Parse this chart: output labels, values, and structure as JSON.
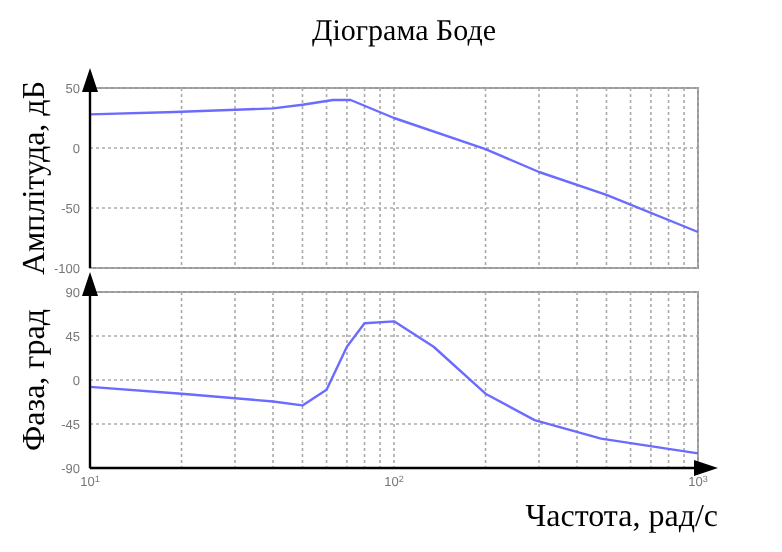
{
  "chart_data": [
    {
      "type": "line",
      "title": "Діограма Боде",
      "ylabel": "Амплітуда, дБ",
      "log": "x",
      "grid": true,
      "tick_labels": "y",
      "line_style": "solid",
      "xlim": [
        10,
        1000
      ],
      "ylim": [
        -100,
        50
      ],
      "yticks": [
        -100,
        -50,
        0,
        50
      ],
      "xticks": [
        {
          "value": 10,
          "label": null
        },
        {
          "value": 20,
          "label": null
        },
        {
          "value": 30,
          "label": null
        },
        {
          "value": 40,
          "label": null
        },
        {
          "value": 50,
          "label": null
        },
        {
          "value": 60,
          "label": null
        },
        {
          "value": 70,
          "label": null
        },
        {
          "value": 80,
          "label": null
        },
        {
          "value": 90,
          "label": null
        },
        {
          "value": 100,
          "label": null
        },
        {
          "value": 200,
          "label": null
        },
        {
          "value": 300,
          "label": null
        },
        {
          "value": 400,
          "label": null
        },
        {
          "value": 500,
          "label": null
        },
        {
          "value": 600,
          "label": null
        },
        {
          "value": 700,
          "label": null
        },
        {
          "value": 800,
          "label": null
        },
        {
          "value": 900,
          "label": null
        },
        {
          "value": 1000,
          "label": null
        }
      ],
      "series": [
        {
          "color": "#6b6bff",
          "x": [
            10,
            19,
            40,
            50,
            63,
            72,
            100,
            200,
            300,
            500,
            1000
          ],
          "values": [
            28,
            30,
            33,
            36,
            40,
            40,
            25,
            -1,
            -20,
            -39,
            -70
          ]
        }
      ]
    },
    {
      "type": "line",
      "ylabel": "Фаза, град",
      "xlabel": "Частота, рад/с",
      "log": "x",
      "grid": true,
      "line_style": "solid",
      "xlim": [
        10,
        1000
      ],
      "ylim": [
        -90,
        90
      ],
      "yticks": [
        -90,
        -45,
        0,
        45,
        90
      ],
      "xticks": [
        {
          "value": 10,
          "label": "10$^{1}$"
        },
        {
          "value": 20,
          "label": null
        },
        {
          "value": 30,
          "label": null
        },
        {
          "value": 40,
          "label": null
        },
        {
          "value": 50,
          "label": null
        },
        {
          "value": 60,
          "label": null
        },
        {
          "value": 70,
          "label": null
        },
        {
          "value": 80,
          "label": null
        },
        {
          "value": 90,
          "label": null
        },
        {
          "value": 100,
          "label": "10$^{2}$"
        },
        {
          "value": 200,
          "label": null
        },
        {
          "value": 300,
          "label": null
        },
        {
          "value": 400,
          "label": null
        },
        {
          "value": 500,
          "label": null
        },
        {
          "value": 600,
          "label": null
        },
        {
          "value": 700,
          "label": null
        },
        {
          "value": 800,
          "label": null
        },
        {
          "value": 900,
          "label": null
        },
        {
          "value": 1000,
          "label": "10$^{3}$"
        }
      ],
      "series": [
        {
          "color": "#6b6bff",
          "x": [
            10,
            20,
            40,
            50,
            60,
            70,
            80,
            100,
            135,
            200,
            290,
            480,
            1000
          ],
          "values": [
            -7,
            -14,
            -22,
            -26,
            -10,
            34,
            58,
            60,
            34,
            -14,
            -41,
            -60,
            -75
          ]
        }
      ]
    }
  ]
}
